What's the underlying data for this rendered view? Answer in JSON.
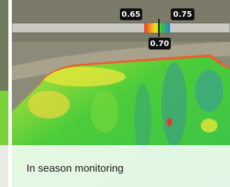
{
  "scale": {
    "low_label": "0.65",
    "high_label": "0.75",
    "current_label": "0.70"
  },
  "caption": "In season monitoring"
}
